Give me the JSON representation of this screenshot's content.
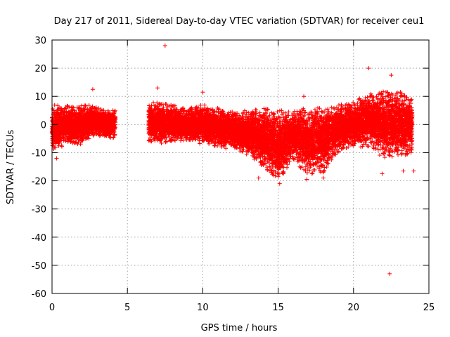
{
  "chart_data": {
    "type": "scatter",
    "title": "Day 217 of 2011, Sidereal Day-to-day VTEC variation (SDTVAR) for receiver ceu1",
    "xlabel": "GPS time / hours",
    "ylabel": "SDTVAR / TECUs",
    "xlim": [
      0,
      25
    ],
    "ylim": [
      -60,
      30
    ],
    "xticks": [
      0,
      5,
      10,
      15,
      20,
      25
    ],
    "yticks": [
      30,
      20,
      10,
      0,
      -10,
      -20,
      -30,
      -40,
      -50,
      -60
    ],
    "xtick_labels": [
      "0",
      "5",
      "10",
      "15",
      "20",
      "25"
    ],
    "ytick_labels": [
      "30",
      "20",
      "10",
      "0",
      "-10",
      "-20",
      "-30",
      "-40",
      "-50",
      "-60"
    ],
    "grid": true,
    "marker": "+",
    "color": "#ff0000",
    "series": [
      {
        "name": "SDTVAR",
        "envelope": [
          {
            "x": 0.0,
            "min": -10,
            "max": 7
          },
          {
            "x": 0.5,
            "min": -9,
            "max": 7
          },
          {
            "x": 1.0,
            "min": -6,
            "max": 7
          },
          {
            "x": 1.5,
            "min": -7,
            "max": 6
          },
          {
            "x": 2.0,
            "min": -7,
            "max": 7
          },
          {
            "x": 2.5,
            "min": -5,
            "max": 7
          },
          {
            "x": 3.0,
            "min": -4,
            "max": 6
          },
          {
            "x": 3.5,
            "min": -5,
            "max": 5
          },
          {
            "x": 4.2,
            "min": -5,
            "max": 5
          },
          {
            "x": 6.4,
            "min": -6,
            "max": 8
          },
          {
            "x": 7.0,
            "min": -7,
            "max": 8
          },
          {
            "x": 8.0,
            "min": -6,
            "max": 7
          },
          {
            "x": 9.0,
            "min": -6,
            "max": 6
          },
          {
            "x": 10.0,
            "min": -7,
            "max": 7
          },
          {
            "x": 11.0,
            "min": -8,
            "max": 6
          },
          {
            "x": 12.0,
            "min": -9,
            "max": 5
          },
          {
            "x": 13.0,
            "min": -11,
            "max": 5
          },
          {
            "x": 14.0,
            "min": -15,
            "max": 6
          },
          {
            "x": 15.0,
            "min": -20,
            "max": 5
          },
          {
            "x": 16.0,
            "min": -13,
            "max": 5
          },
          {
            "x": 17.0,
            "min": -18,
            "max": 6
          },
          {
            "x": 18.0,
            "min": -17,
            "max": 6
          },
          {
            "x": 19.0,
            "min": -10,
            "max": 7
          },
          {
            "x": 20.0,
            "min": -8,
            "max": 8
          },
          {
            "x": 21.0,
            "min": -8,
            "max": 11
          },
          {
            "x": 22.0,
            "min": -12,
            "max": 12
          },
          {
            "x": 23.0,
            "min": -12,
            "max": 12
          },
          {
            "x": 23.9,
            "min": -10,
            "max": 10
          }
        ],
        "outliers": [
          {
            "x": 7.5,
            "y": 28
          },
          {
            "x": 7.0,
            "y": 13
          },
          {
            "x": 2.7,
            "y": 12.5
          },
          {
            "x": 10.0,
            "y": 11.5
          },
          {
            "x": 16.7,
            "y": 10
          },
          {
            "x": 21.0,
            "y": 20
          },
          {
            "x": 22.5,
            "y": 17.5
          },
          {
            "x": 22.4,
            "y": -53
          },
          {
            "x": 15.1,
            "y": -21
          },
          {
            "x": 16.9,
            "y": -19.5
          },
          {
            "x": 18.0,
            "y": -19
          },
          {
            "x": 13.7,
            "y": -19
          },
          {
            "x": 0.3,
            "y": -12
          },
          {
            "x": 23.3,
            "y": -16.5
          },
          {
            "x": 21.9,
            "y": -17.5
          },
          {
            "x": 24.0,
            "y": -16.5
          }
        ]
      }
    ]
  }
}
